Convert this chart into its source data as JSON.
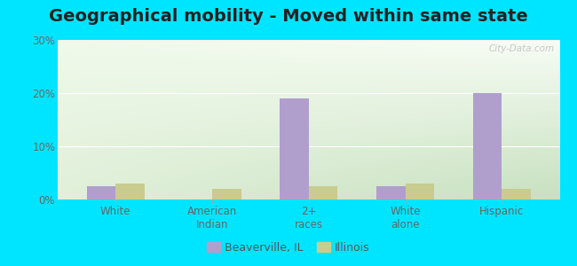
{
  "title": "Geographical mobility - Moved within same state",
  "categories": [
    "White",
    "American\nIndian",
    "2+\nraces",
    "White\nalone",
    "Hispanic"
  ],
  "beaverville_values": [
    2.5,
    0.0,
    19.0,
    2.5,
    20.0
  ],
  "illinois_values": [
    3.0,
    2.0,
    2.5,
    3.0,
    2.0
  ],
  "beaverville_color": "#b09fcc",
  "illinois_color": "#c8cc8f",
  "ylim": [
    0,
    30
  ],
  "yticks": [
    0,
    10,
    20,
    30
  ],
  "ytick_labels": [
    "0%",
    "10%",
    "20%",
    "30%"
  ],
  "bg_topleft": "#e8f4e0",
  "bg_topright": "#f5f9f0",
  "bg_bottomleft": "#d0e8c0",
  "bg_bottomright": "#e0f0d8",
  "bar_width": 0.3,
  "figure_bg": "#00e5ff",
  "title_fontsize": 14,
  "tick_fontsize": 8.5,
  "legend_fontsize": 9,
  "watermark": "City-Data.com"
}
